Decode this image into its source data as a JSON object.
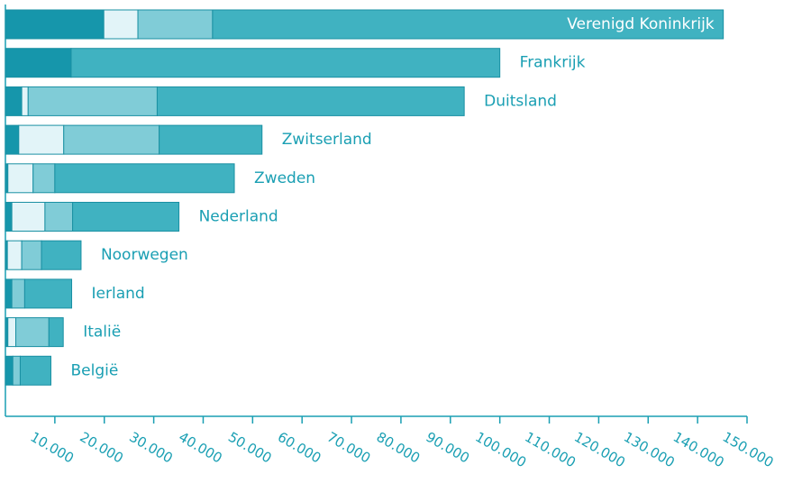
{
  "chart_data": {
    "type": "stacked-barh",
    "categories": [
      "Verenigd Koninkrijk",
      "Frankrijk",
      "Duitsland",
      "Zwitserland",
      "Zweden",
      "Nederland",
      "Noorwegen",
      "Ierland",
      "Italië",
      "België"
    ],
    "series": [
      {
        "color": "#1696ab",
        "values": [
          19900,
          13300,
          3300,
          2700,
          500,
          1300,
          400,
          1300,
          500,
          1500
        ]
      },
      {
        "color": "#e2f4f8",
        "values": [
          6900,
          0,
          1300,
          9100,
          5100,
          6700,
          2900,
          0,
          1600,
          0
        ]
      },
      {
        "color": "#80ccd7",
        "values": [
          15100,
          0,
          26100,
          19300,
          4400,
          5600,
          4000,
          2600,
          6700,
          1500
        ]
      },
      {
        "color": "#40b2c1",
        "values": [
          103300,
          86700,
          62100,
          20800,
          36300,
          21500,
          8000,
          9500,
          2900,
          6200
        ]
      }
    ],
    "xlim": [
      0,
      150000
    ],
    "xticks": [
      {
        "value": 10000,
        "label": "10.000"
      },
      {
        "value": 20000,
        "label": "20.000"
      },
      {
        "value": 30000,
        "label": "30.000"
      },
      {
        "value": 40000,
        "label": "40.000"
      },
      {
        "value": 50000,
        "label": "50.000"
      },
      {
        "value": 60000,
        "label": "60.000"
      },
      {
        "value": 70000,
        "label": "70.000"
      },
      {
        "value": 80000,
        "label": "80.000"
      },
      {
        "value": 90000,
        "label": "90.000"
      },
      {
        "value": 100000,
        "label": "100.000"
      },
      {
        "value": 110000,
        "label": "110.000"
      },
      {
        "value": 120000,
        "label": "120.000"
      },
      {
        "value": 130000,
        "label": "130.000"
      },
      {
        "value": 140000,
        "label": "140.000"
      },
      {
        "value": 150000,
        "label": "150.000"
      }
    ]
  }
}
